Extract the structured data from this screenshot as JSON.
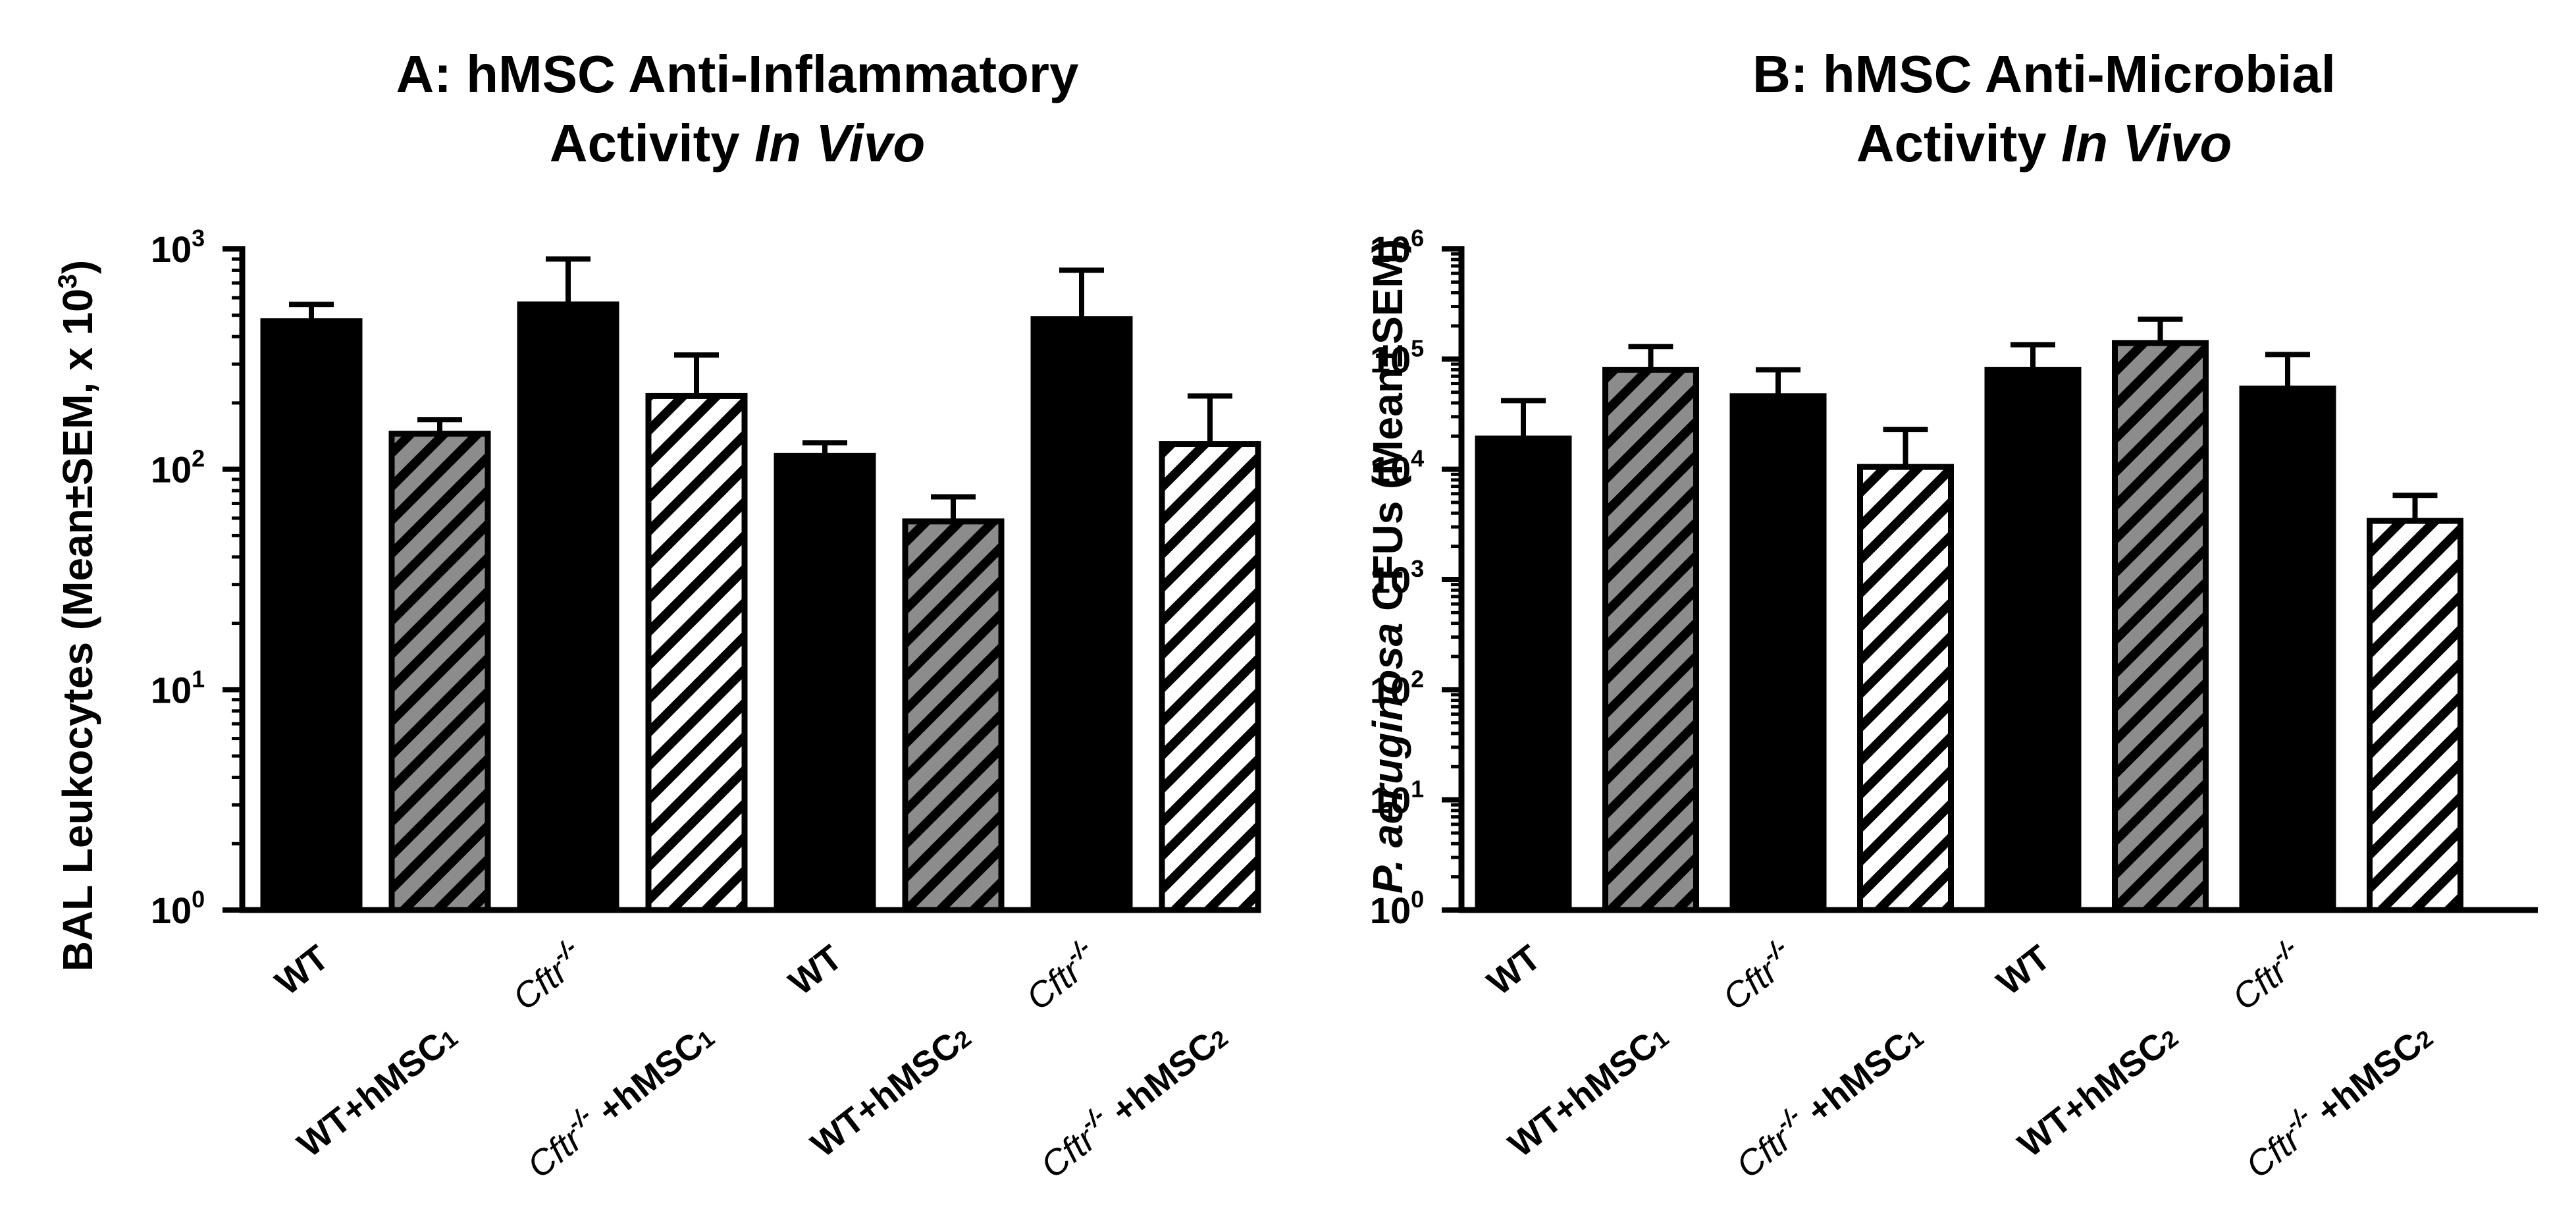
{
  "colors": {
    "black": "#000000",
    "gray_fill": "#8c8c8c",
    "white_fill": "#ffffff",
    "stroke": "#000000"
  },
  "chart_data": [
    {
      "type": "bar",
      "scale": "log10",
      "title_line1": "A: hMSC Anti-Inflammatory",
      "title_line2_prefix": "Activity ",
      "title_line2_italic": "In Vivo",
      "ylabel_prefix": "BAL Leukocytes (Mean±SEM, x 10",
      "ylabel_exp": "3",
      "ylabel_suffix": ")",
      "ylim_exp": [
        0,
        3
      ],
      "yticks": [
        {
          "base": "10",
          "exp": "0"
        },
        {
          "base": "10",
          "exp": "1"
        },
        {
          "base": "10",
          "exp": "2"
        },
        {
          "base": "10",
          "exp": "3"
        }
      ],
      "categories": [
        {
          "style": "solid",
          "line1": "WT",
          "line1_italic": false,
          "line2": "",
          "sub": "",
          "sup": ""
        },
        {
          "style": "gray",
          "line1": "WT+hMSC",
          "line1_italic": false,
          "line2": "",
          "sub": "1",
          "sup": ""
        },
        {
          "style": "solid",
          "line1": "Cftr",
          "line1_italic": true,
          "line2": "",
          "sub": "",
          "sup": "-/-"
        },
        {
          "style": "white",
          "line1": "Cftr",
          "line1_italic": true,
          "line2": " +hMSC",
          "sub": "1",
          "sup": "-/-"
        },
        {
          "style": "solid",
          "line1": "WT",
          "line1_italic": false,
          "line2": "",
          "sub": "",
          "sup": ""
        },
        {
          "style": "gray",
          "line1": "WT+hMSC",
          "line1_italic": false,
          "line2": "",
          "sub": "2",
          "sup": ""
        },
        {
          "style": "solid",
          "line1": "Cftr",
          "line1_italic": true,
          "line2": "",
          "sub": "",
          "sup": "-/-"
        },
        {
          "style": "white",
          "line1": "Cftr",
          "line1_italic": true,
          "line2": " +hMSC",
          "sub": "2",
          "sup": "-/-"
        }
      ],
      "values": [
        470,
        145,
        560,
        215,
        115,
        58,
        480,
        130
      ],
      "errors_upper": [
        560,
        168,
        900,
        330,
        132,
        75,
        800,
        215
      ]
    },
    {
      "type": "bar",
      "scale": "log10",
      "title_line1": "B: hMSC Anti-Microbial",
      "title_line2_prefix": "Activity ",
      "title_line2_italic": "In Vivo",
      "ylabel_italic": "P. aeruginosa",
      "ylabel_rest": " CFUs (Mean±SEM)",
      "ylim_exp": [
        0,
        6
      ],
      "yticks": [
        {
          "base": "10",
          "exp": "0"
        },
        {
          "base": "10",
          "exp": "1"
        },
        {
          "base": "10",
          "exp": "2"
        },
        {
          "base": "10",
          "exp": "3"
        },
        {
          "base": "10",
          "exp": "4"
        },
        {
          "base": "10",
          "exp": "5"
        },
        {
          "base": "10",
          "exp": "6"
        }
      ],
      "categories": [
        {
          "style": "solid",
          "line1": "WT",
          "line1_italic": false,
          "line2": "",
          "sub": "",
          "sup": ""
        },
        {
          "style": "gray",
          "line1": "WT+hMSC",
          "line1_italic": false,
          "line2": "",
          "sub": "1",
          "sup": ""
        },
        {
          "style": "solid",
          "line1": "Cftr",
          "line1_italic": true,
          "line2": "",
          "sub": "",
          "sup": "-/-"
        },
        {
          "style": "white",
          "line1": "Cftr",
          "line1_italic": true,
          "line2": " +hMSC",
          "sub": "1",
          "sup": "-/-"
        },
        {
          "style": "solid",
          "line1": "WT",
          "line1_italic": false,
          "line2": "",
          "sub": "",
          "sup": ""
        },
        {
          "style": "gray",
          "line1": "WT+hMSC",
          "line1_italic": false,
          "line2": "",
          "sub": "2",
          "sup": ""
        },
        {
          "style": "solid",
          "line1": "Cftr",
          "line1_italic": true,
          "line2": "",
          "sub": "",
          "sup": "-/-"
        },
        {
          "style": "white",
          "line1": "Cftr",
          "line1_italic": true,
          "line2": " +hMSC",
          "sub": "2",
          "sup": "-/-"
        }
      ],
      "values": [
        19000,
        80000,
        46000,
        10500,
        80000,
        140000,
        54000,
        3400
      ],
      "errors_upper": [
        42000,
        130000,
        80000,
        23000,
        135000,
        230000,
        110000,
        5800
      ]
    }
  ]
}
